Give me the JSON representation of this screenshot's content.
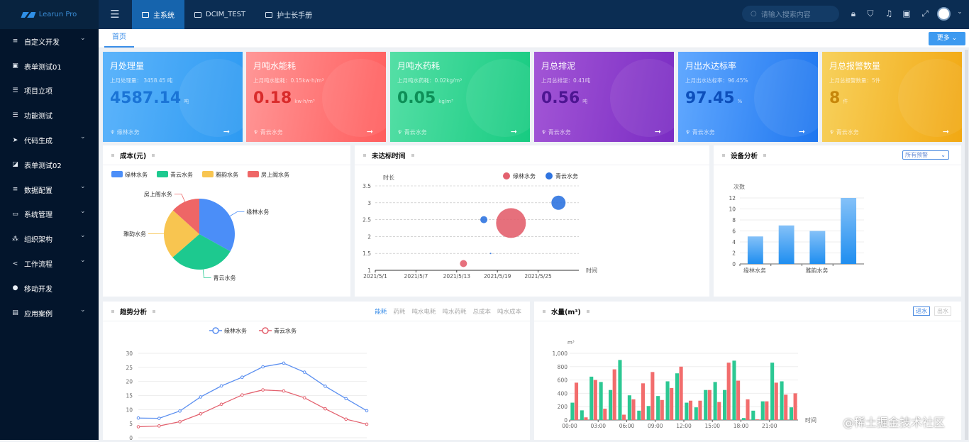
{
  "header": {
    "brand": "Learun Pro",
    "tabs": [
      {
        "label": "主系统",
        "active": true
      },
      {
        "label": "DCIM_TEST"
      },
      {
        "label": "护士长手册"
      }
    ],
    "search_placeholder": "请输入搜索内容",
    "icons": [
      "lock-icon",
      "shirt-icon",
      "bell-icon",
      "translate-icon",
      "fullscreen-icon"
    ]
  },
  "sidebar": {
    "items": [
      {
        "label": "自定义开发",
        "icon": "≡",
        "expand": true
      },
      {
        "label": "表单测试01",
        "icon": "▣"
      },
      {
        "label": "项目立项",
        "icon": "☰"
      },
      {
        "label": "功能测试",
        "icon": "☰"
      },
      {
        "label": "代码生成",
        "icon": "➤",
        "expand": true
      },
      {
        "label": "表单测试02",
        "icon": "◪"
      },
      {
        "label": "数据配置",
        "icon": "≡",
        "expand": true
      },
      {
        "label": "系统管理",
        "icon": "▭",
        "expand": true
      },
      {
        "label": "组织架构",
        "icon": "⁂",
        "expand": true
      },
      {
        "label": "工作流程",
        "icon": "<",
        "expand": true
      },
      {
        "label": "移动开发",
        "icon": "●"
      },
      {
        "label": "应用案例",
        "icon": "▤",
        "expand": true
      }
    ]
  },
  "tabbar": {
    "home": "首页",
    "more": "更多"
  },
  "cards": [
    {
      "title": "月处理量",
      "sub": "上月处理量： 3458.45 吨",
      "value": "4587.14",
      "unit": "吨",
      "footer": "缘林水务",
      "colors": [
        "#5db4fb",
        "#2d9af2"
      ],
      "vcolor": "#1a74d6"
    },
    {
      "title": "月吨水能耗",
      "sub": "上月吨水能耗：0.15kw·h/m³",
      "value": "0.18",
      "unit": "kw·h/m³",
      "footer": "青云水务",
      "colors": [
        "#ff9797",
        "#ff5d5d"
      ],
      "vcolor": "#d92b2b"
    },
    {
      "title": "月吨水药耗",
      "sub": "上月吨水药耗：0.02kg/m³",
      "value": "0.05",
      "unit": "kg/m³",
      "footer": "青云水务",
      "colors": [
        "#55dfa6",
        "#17cb81"
      ],
      "vcolor": "#0d8f57"
    },
    {
      "title": "月总排泥",
      "sub": "上月总排泥：0.41吨",
      "value": "0.56",
      "unit": "吨",
      "footer": "青云水务",
      "colors": [
        "#a356d6",
        "#7a2cc3"
      ],
      "vcolor": "#4d1592"
    },
    {
      "title": "月出水达标率",
      "sub": "上月出水达标率：96.45%",
      "value": "97.45",
      "unit": "%",
      "footer": "青云水务",
      "colors": [
        "#62a9ff",
        "#1e76ef"
      ],
      "vcolor": "#0d4fbb"
    },
    {
      "title": "月总报警数量",
      "sub": "上月总报警数量：5件",
      "value": "8",
      "unit": "件",
      "footer": "青云水务",
      "colors": [
        "#f7d15d",
        "#f2a812"
      ],
      "vcolor": "#c6860a"
    }
  ],
  "panels": {
    "cost": "成本(元)",
    "overdue": "未达标时间",
    "device": "设备分析",
    "device_select": "所有预警",
    "trend": "趋势分析",
    "trend_tabs": [
      "能耗",
      "药耗",
      "吨水电耗",
      "吨水药耗",
      "总成本",
      "吨水成本"
    ],
    "water": "水量(m³)",
    "water_tabs": [
      "进水",
      "出水"
    ]
  },
  "chart_data": [
    {
      "type": "pie",
      "legend": [
        "缘林水务",
        "青云水务",
        "雅韵水务",
        "房上阁水务"
      ],
      "values": [
        335,
        310,
        234,
        135
      ],
      "colors": [
        "#4b8ef8",
        "#1dc98f",
        "#f8c550",
        "#ee6666"
      ],
      "legend_position": "top"
    },
    {
      "type": "scatter",
      "ylabel": "时长",
      "xlabel": "时间",
      "ylim": [
        1,
        3.5
      ],
      "xlim": [
        "2021/5/1",
        "2021/5/31"
      ],
      "xticks": [
        "2021/5/1",
        "2021/5/7",
        "2021/5/13",
        "2021/5/19",
        "2021/5/25"
      ],
      "yticks": [
        "1",
        "1.5",
        "2",
        "2.5",
        "3",
        "3.5"
      ],
      "series": [
        {
          "name": "缘林水务",
          "color": "#e3616e",
          "points": [
            {
              "x": "2021/5/14",
              "y": 1.2,
              "size": 10
            },
            {
              "x": "2021/5/21",
              "y": 2.4,
              "size": 42
            }
          ]
        },
        {
          "name": "青云水务",
          "color": "#2f74e0",
          "points": [
            {
              "x": "2021/5/17",
              "y": 2.5,
              "size": 10
            },
            {
              "x": "2021/5/18",
              "y": 1.5,
              "size": 2
            },
            {
              "x": "2021/5/28",
              "y": 3.0,
              "size": 20
            }
          ]
        }
      ]
    },
    {
      "type": "bar",
      "ylabel": "次数",
      "ylim": [
        0,
        12
      ],
      "yticks": [
        "0",
        "2",
        "4",
        "6",
        "8",
        "10",
        "12"
      ],
      "categories": [
        "缘林水务",
        "",
        "雅韵水务",
        ""
      ],
      "values": [
        5,
        7,
        6,
        12
      ]
    },
    {
      "type": "line",
      "ylim": [
        0,
        30
      ],
      "yticks": [
        "0",
        "5",
        "10",
        "15",
        "20",
        "25",
        "30"
      ],
      "series": [
        {
          "name": "缘林水务",
          "color": "#5b8ff0",
          "values": [
            7.0,
            6.9,
            9.5,
            14.5,
            18.4,
            21.5,
            25.2,
            26.5,
            23.3,
            18.3,
            13.9,
            9.6
          ]
        },
        {
          "name": "青云水务",
          "color": "#e3616e",
          "values": [
            3.9,
            4.2,
            5.7,
            8.5,
            11.9,
            15.2,
            17.0,
            16.6,
            14.2,
            10.3,
            6.6,
            4.8
          ]
        }
      ]
    },
    {
      "type": "bar",
      "ylabel": "m³",
      "xlabel": "时间",
      "ylim": [
        0,
        1000
      ],
      "yticks": [
        "0",
        "200",
        "400",
        "600",
        "800",
        "1,000"
      ],
      "xticks": [
        "00:00",
        "03:00",
        "06:00",
        "09:00",
        "12:00",
        "15:00",
        "18:00",
        "21:00"
      ],
      "series": [
        {
          "color": "#2cc893",
          "values": [
            260,
            145,
            650,
            570,
            450,
            900,
            370,
            140,
            210,
            360,
            580,
            700,
            260,
            190,
            450,
            570,
            450,
            890,
            30,
            140,
            280,
            860,
            580,
            190
          ]
        },
        {
          "color": "#f26d6d",
          "values": [
            560,
            40,
            600,
            170,
            760,
            80,
            310,
            550,
            720,
            300,
            480,
            800,
            290,
            290,
            450,
            270,
            860,
            590,
            310,
            10,
            280,
            560,
            380,
            400
          ]
        }
      ]
    }
  ],
  "watermark": "@稀土掘金技术社区"
}
